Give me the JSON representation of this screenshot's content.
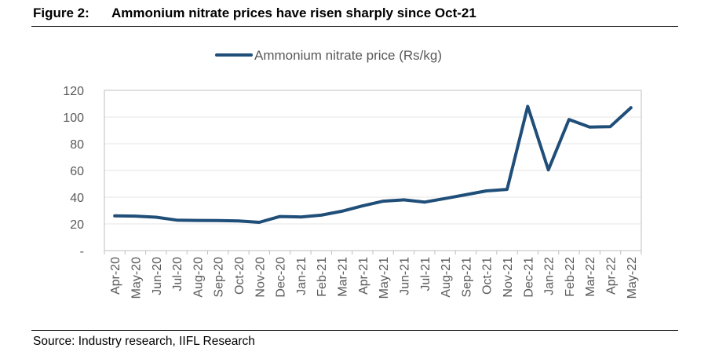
{
  "figure": {
    "label": "Figure 2:",
    "title": "Ammonium nitrate prices have risen sharply since Oct-21",
    "source": "Source: Industry research, IIFL Research"
  },
  "colors": {
    "line": "#1f4e79",
    "grid": "#e6e6e6",
    "axis": "#bfbfbf",
    "text": "#595959"
  },
  "chart_data": {
    "type": "line",
    "title": "",
    "xlabel": "",
    "ylabel": "",
    "ylim": [
      0,
      120
    ],
    "yticks": [
      0,
      20,
      40,
      60,
      80,
      100,
      120
    ],
    "ytick_labels": [
      "-",
      "20",
      "40",
      "60",
      "80",
      "100",
      "120"
    ],
    "grid": true,
    "legend_position": "top-center",
    "categories": [
      "Apr-20",
      "May-20",
      "Jun-20",
      "Jul-20",
      "Aug-20",
      "Sep-20",
      "Oct-20",
      "Nov-20",
      "Dec-20",
      "Jan-21",
      "Feb-21",
      "Mar-21",
      "Apr-21",
      "May-21",
      "Jun-21",
      "Jul-21",
      "Aug-21",
      "Sep-21",
      "Oct-21",
      "Nov-21",
      "Dec-21",
      "Jan-22",
      "Feb-22",
      "Mar-22",
      "Apr-22",
      "May-22"
    ],
    "series": [
      {
        "name": "Ammonium nitrate price (Rs/kg)",
        "values": [
          26,
          25.8,
          25,
          22.8,
          22.6,
          22.5,
          22.2,
          21.2,
          25.5,
          25.2,
          26.5,
          29.5,
          33.5,
          37,
          38,
          36.3,
          39,
          41.8,
          44.7,
          45.8,
          108,
          60.5,
          98.2,
          92.5,
          92.8,
          107
        ]
      }
    ]
  }
}
